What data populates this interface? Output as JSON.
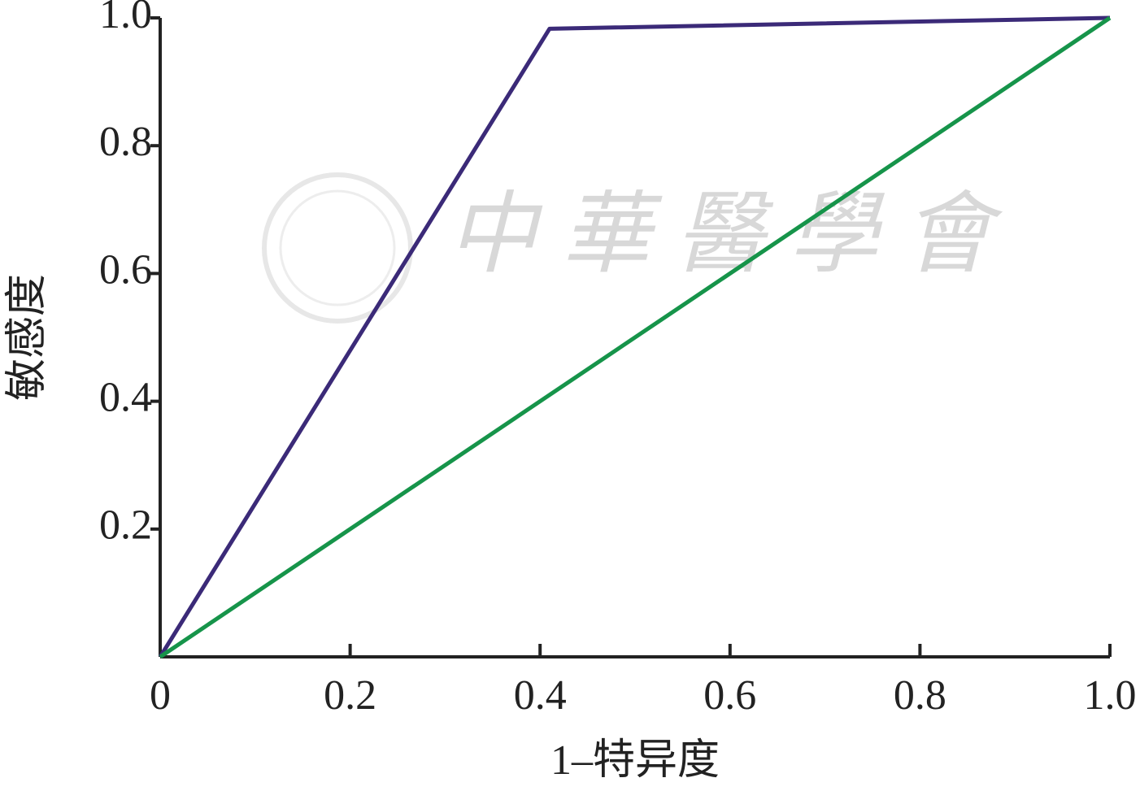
{
  "chart_data": {
    "type": "line",
    "xlabel": "1–特异度",
    "ylabel": "敏感度",
    "watermark": "中華醫學會",
    "xlim": [
      0,
      1
    ],
    "ylim": [
      0,
      1
    ],
    "xticks": [
      0,
      0.2,
      0.4,
      0.6,
      0.8,
      {
        "value": 1,
        "label": "1.0"
      }
    ],
    "yticks": [
      0.2,
      0.4,
      0.6,
      0.8,
      {
        "value": 1,
        "label": "1.0"
      }
    ],
    "series": [
      {
        "color": "#3b2a78",
        "x": [
          0,
          0.41,
          1
        ],
        "values": [
          0,
          0.983,
          1
        ]
      },
      {
        "color": "#16944a",
        "x": [
          0,
          1
        ],
        "values": [
          0,
          1
        ]
      }
    ]
  }
}
